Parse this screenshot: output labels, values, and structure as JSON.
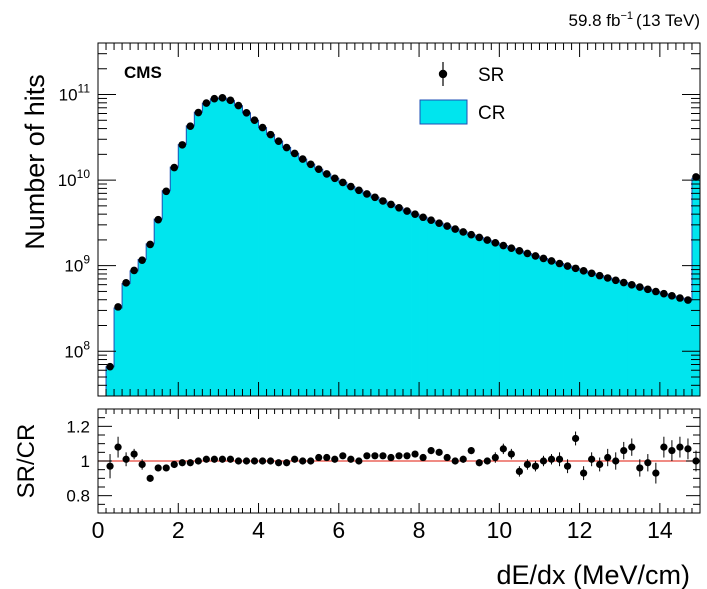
{
  "chart_data": [
    {
      "type": "bar",
      "panel": "main",
      "experiment_label": "CMS",
      "luminosity_label": "59.8 fb",
      "luminosity_exponent": "−1",
      "energy_label": "(13 TeV)",
      "ylabel": "Number of hits",
      "yscale": "log",
      "ylim": [
        30000000,
        400000000000
      ],
      "xlim": [
        0,
        15
      ],
      "yticks": [
        {
          "base": "10",
          "exp": "8",
          "value": 100000000
        },
        {
          "base": "10",
          "exp": "9",
          "value": 1000000000
        },
        {
          "base": "10",
          "exp": "10",
          "value": 10000000000
        },
        {
          "base": "10",
          "exp": "11",
          "value": 100000000000
        }
      ],
      "legend_position": "top-center",
      "legend": [
        {
          "label": "SR",
          "style": "marker",
          "color": "#000000"
        },
        {
          "label": "CR",
          "style": "fill",
          "color": "#00e5ee",
          "edge": "#1f4fb4"
        }
      ],
      "bin_width": 0.2,
      "x": [
        0.1,
        0.3,
        0.5,
        0.7,
        0.9,
        1.1,
        1.3,
        1.5,
        1.7,
        1.9,
        2.1,
        2.3,
        2.5,
        2.7,
        2.9,
        3.1,
        3.3,
        3.5,
        3.7,
        3.9,
        4.1,
        4.3,
        4.5,
        4.7,
        4.9,
        5.1,
        5.3,
        5.5,
        5.7,
        5.9,
        6.1,
        6.3,
        6.5,
        6.7,
        6.9,
        7.1,
        7.3,
        7.5,
        7.7,
        7.9,
        8.1,
        8.3,
        8.5,
        8.7,
        8.9,
        9.1,
        9.3,
        9.5,
        9.7,
        9.9,
        10.1,
        10.3,
        10.5,
        10.7,
        10.9,
        11.1,
        11.3,
        11.5,
        11.7,
        11.9,
        12.1,
        12.3,
        12.5,
        12.7,
        12.9,
        13.1,
        13.3,
        13.5,
        13.7,
        13.9,
        14.1,
        14.3,
        14.5,
        14.7,
        14.9
      ],
      "series": [
        {
          "name": "CR",
          "values": [
            0,
            66000000,
            320000000,
            620000000,
            870000000,
            1180000000,
            1800000000,
            3500000000,
            7500000000,
            14200000000,
            26000000000,
            43000000000,
            62000000000,
            79000000000,
            89000000000,
            91000000000,
            85000000000,
            74000000000,
            61000000000,
            50000000000,
            41000000000,
            34000000000,
            28500000000,
            24000000000,
            20500000000,
            17600000000,
            15300000000,
            13400000000,
            11800000000,
            10500000000,
            9400000000,
            8400000000,
            7600000000,
            6900000000,
            6300000000,
            5700000000,
            5200000000,
            4750000000,
            4350000000,
            4000000000,
            3680000000,
            3400000000,
            3140000000,
            2900000000,
            2680000000,
            2480000000,
            2300000000,
            2140000000,
            1990000000,
            1850000000,
            1720000000,
            1600000000,
            1490000000,
            1390000000,
            1300000000,
            1215000000,
            1135000000,
            1060000000,
            990000000,
            930000000,
            870000000,
            815000000,
            765000000,
            718000000,
            675000000,
            635000000,
            597000000,
            562000000,
            529000000,
            499000000,
            470000000,
            444000000,
            419000000,
            396000000,
            10500000000
          ]
        },
        {
          "name": "SR",
          "values": [
            0,
            66000000,
            330000000,
            630000000,
            880000000,
            1160000000,
            1770000000,
            3450000000,
            7400000000,
            14000000000,
            25800000000,
            42700000000,
            61600000000,
            79500000000,
            89500000000,
            91500000000,
            85500000000,
            74300000000,
            61200000000,
            50100000000,
            41100000000,
            34000000000,
            28500000000,
            24000000000,
            20500000000,
            17600000000,
            15300000000,
            13400000000,
            11800000000,
            10500000000,
            9400000000,
            8400000000,
            7600000000,
            6900000000,
            6300000000,
            5700000000,
            5200000000,
            4750000000,
            4350000000,
            4000000000,
            3680000000,
            3400000000,
            3140000000,
            2900000000,
            2680000000,
            2480000000,
            2300000000,
            2140000000,
            1990000000,
            1850000000,
            1720000000,
            1600000000,
            1490000000,
            1390000000,
            1300000000,
            1215000000,
            1135000000,
            1060000000,
            990000000,
            930000000,
            870000000,
            815000000,
            765000000,
            718000000,
            675000000,
            635000000,
            597000000,
            562000000,
            529000000,
            499000000,
            470000000,
            444000000,
            419000000,
            396000000,
            10900000000
          ]
        }
      ]
    },
    {
      "type": "scatter",
      "panel": "ratio",
      "ylabel": "SR/CR",
      "xlabel": "dE/dx (MeV/cm)",
      "xlim": [
        0,
        15
      ],
      "ylim": [
        0.7,
        1.3
      ],
      "xticks": [
        "0",
        "2",
        "4",
        "6",
        "8",
        "10",
        "12",
        "14"
      ],
      "yticks": [
        "0.8",
        "1",
        "1.2"
      ],
      "reference_line": {
        "value": 1.0,
        "color": "#e8463a"
      },
      "x": [
        0.3,
        0.5,
        0.7,
        0.9,
        1.1,
        1.3,
        1.5,
        1.7,
        1.9,
        2.1,
        2.3,
        2.5,
        2.7,
        2.9,
        3.1,
        3.3,
        3.5,
        3.7,
        3.9,
        4.1,
        4.3,
        4.5,
        4.7,
        4.9,
        5.1,
        5.3,
        5.5,
        5.7,
        5.9,
        6.1,
        6.3,
        6.5,
        6.7,
        6.9,
        7.1,
        7.3,
        7.5,
        7.7,
        7.9,
        8.1,
        8.3,
        8.5,
        8.7,
        8.9,
        9.1,
        9.3,
        9.5,
        9.7,
        9.9,
        10.1,
        10.3,
        10.5,
        10.7,
        10.9,
        11.1,
        11.3,
        11.5,
        11.7,
        11.9,
        12.1,
        12.3,
        12.5,
        12.7,
        12.9,
        13.1,
        13.3,
        13.5,
        13.7,
        13.9,
        14.1,
        14.3,
        14.5,
        14.7,
        14.9
      ],
      "values": [
        0.97,
        1.08,
        1.01,
        1.04,
        0.98,
        0.9,
        0.96,
        0.96,
        0.98,
        0.99,
        0.99,
        1.0,
        1.01,
        1.01,
        1.01,
        1.01,
        1.0,
        1.0,
        1.0,
        1.0,
        1.0,
        0.99,
        0.99,
        1.01,
        1.0,
        1.0,
        1.02,
        1.02,
        1.01,
        1.03,
        1.01,
        1.0,
        1.03,
        1.03,
        1.03,
        1.02,
        1.03,
        1.03,
        1.04,
        1.02,
        1.06,
        1.05,
        1.02,
        1.0,
        1.01,
        1.06,
        0.99,
        1.0,
        1.02,
        1.07,
        1.04,
        0.94,
        0.98,
        0.97,
        1.0,
        1.01,
        1.01,
        0.97,
        1.13,
        0.93,
        1.01,
        0.98,
        1.02,
        1.0,
        1.06,
        1.08,
        0.96,
        0.99,
        0.93,
        1.08,
        1.06,
        1.08,
        1.07,
        1.0
      ],
      "errors": [
        0.07,
        0.06,
        0.04,
        0.03,
        0.03,
        0.02,
        0.02,
        0.01,
        0.01,
        0.01,
        0.01,
        0.01,
        0.01,
        0.01,
        0.01,
        0.01,
        0.01,
        0.01,
        0.01,
        0.01,
        0.01,
        0.01,
        0.01,
        0.01,
        0.01,
        0.01,
        0.01,
        0.01,
        0.01,
        0.01,
        0.01,
        0.01,
        0.01,
        0.01,
        0.01,
        0.01,
        0.01,
        0.01,
        0.01,
        0.02,
        0.02,
        0.02,
        0.02,
        0.02,
        0.02,
        0.02,
        0.02,
        0.02,
        0.03,
        0.03,
        0.03,
        0.03,
        0.03,
        0.03,
        0.03,
        0.03,
        0.04,
        0.04,
        0.04,
        0.04,
        0.04,
        0.04,
        0.05,
        0.05,
        0.05,
        0.05,
        0.05,
        0.05,
        0.06,
        0.06,
        0.06,
        0.06,
        0.06,
        0.06
      ]
    }
  ]
}
